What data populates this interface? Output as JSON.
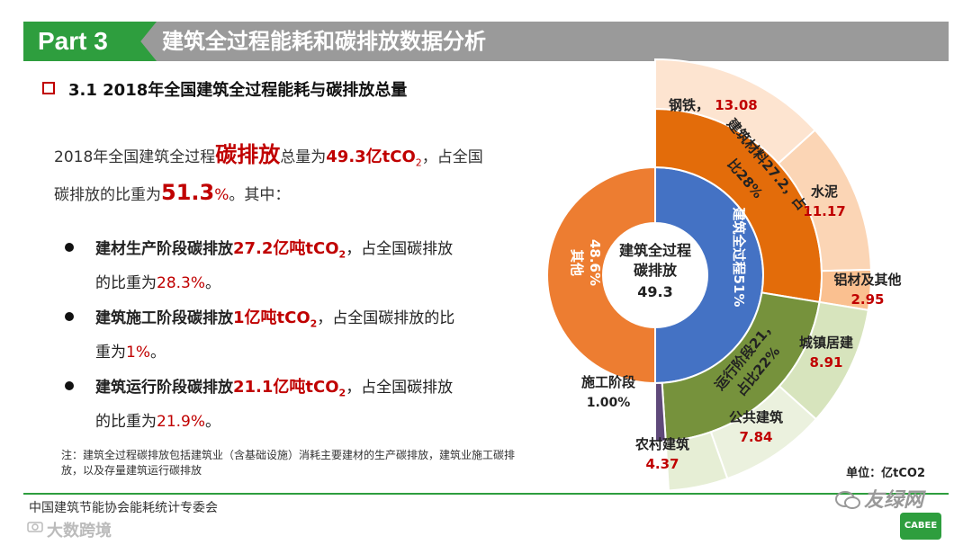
{
  "header": {
    "part": "Part 3",
    "title": "建筑全过程能耗和碳排放数据分析"
  },
  "section": {
    "title": "3.1  2018年全国建筑全过程能耗与碳排放总量"
  },
  "intro": {
    "l1_a": "2018年全国建筑全过程",
    "l1_b": "碳排放",
    "l1_c": "总量为",
    "l1_d": "49.3亿tCO",
    "l1_sub": "2",
    "l1_e": "，占全国",
    "l2_a": "碳排放的比重为",
    "l2_b": "51.3",
    "l2_c": "%",
    "l2_d": "。其中："
  },
  "bullets": [
    {
      "a": "建材生产阶段碳排放",
      "b": "27.2亿吨tCO",
      "sub": "2",
      "c": "，占全国碳排放",
      "d": "的比重为",
      "e": "28.3%",
      "f": "。"
    },
    {
      "a": "建筑施工阶段碳排放",
      "b": "1亿吨tCO",
      "sub": "2",
      "c": "，占全国碳排放的比",
      "d": "重为",
      "e": "1%",
      "f": "。"
    },
    {
      "a": "建筑运行阶段碳排放",
      "b": "21.1亿吨tCO",
      "sub": "2",
      "c": "，占全国碳排放",
      "d": "的比重为",
      "e": "21.9%",
      "f": "。"
    }
  ],
  "note": "注：建筑全过程碳排放包括建筑业（含基础设施）消耗主要建材的生产碳排放，建筑业施工碳排放，以及存量建筑运行碳排放",
  "footer": {
    "org": "中国建筑节能协会能耗统计专委会",
    "wm_left": "大数跨境",
    "wm_right": "友绿网",
    "logo": "CABEE"
  },
  "chart_data": {
    "type": "sunburst",
    "unit": "单位：亿tCO2",
    "center": {
      "label1": "建筑全过程",
      "label2": "碳排放",
      "value": "49.3"
    },
    "total": 49.3,
    "inner": [
      {
        "name": "建筑全过程51%",
        "value": 49.3,
        "color": "#4472c4"
      },
      {
        "name": "其他48.6%",
        "value": 46.6,
        "color": "#ed7d31"
      }
    ],
    "middle": [
      {
        "name": "建筑材料27.2，占比28%",
        "value": 27.2,
        "color": "#e36c0a"
      },
      {
        "name": "运行阶段21，占比22%",
        "value": 21.1,
        "color": "#76923c"
      },
      {
        "name": "施工阶段",
        "value": 1.0,
        "color": "#5f497a"
      }
    ],
    "outer": [
      {
        "name": "钢铁",
        "value": 13.08,
        "color": "#fde4d0"
      },
      {
        "name": "水泥",
        "value": 11.17,
        "color": "#fbd5b5"
      },
      {
        "name": "铝材及其他",
        "value": 2.95,
        "color": "#fac090"
      },
      {
        "name": "城镇居建",
        "value": 8.91,
        "color": "#d7e4bd"
      },
      {
        "name": "公共建筑",
        "value": 7.84,
        "color": "#ebf1de"
      },
      {
        "name": "农村建筑",
        "value": 4.37,
        "color": "#e6eed5"
      }
    ],
    "labels": {
      "steel": {
        "name": "钢铁，",
        "value": "13.08"
      },
      "cement": {
        "name": "水泥",
        "value": "11.17"
      },
      "alum": {
        "name": "铝材及其他",
        "value": "2.95"
      },
      "urban": {
        "name": "城镇居建",
        "value": "8.91"
      },
      "public": {
        "name": "公共建筑",
        "value": "7.84"
      },
      "rural": {
        "name": "农村建筑",
        "value": "4.37"
      },
      "construction": {
        "name": "施工阶段",
        "value": "1.00%"
      },
      "whole": "建筑全过程51%",
      "other1": "其他",
      "other2": "48.6%",
      "materials1": "建筑材料27.2，占",
      "materials2": "比28%",
      "operation1": "运行阶段21，",
      "operation2": "占比22%"
    }
  }
}
